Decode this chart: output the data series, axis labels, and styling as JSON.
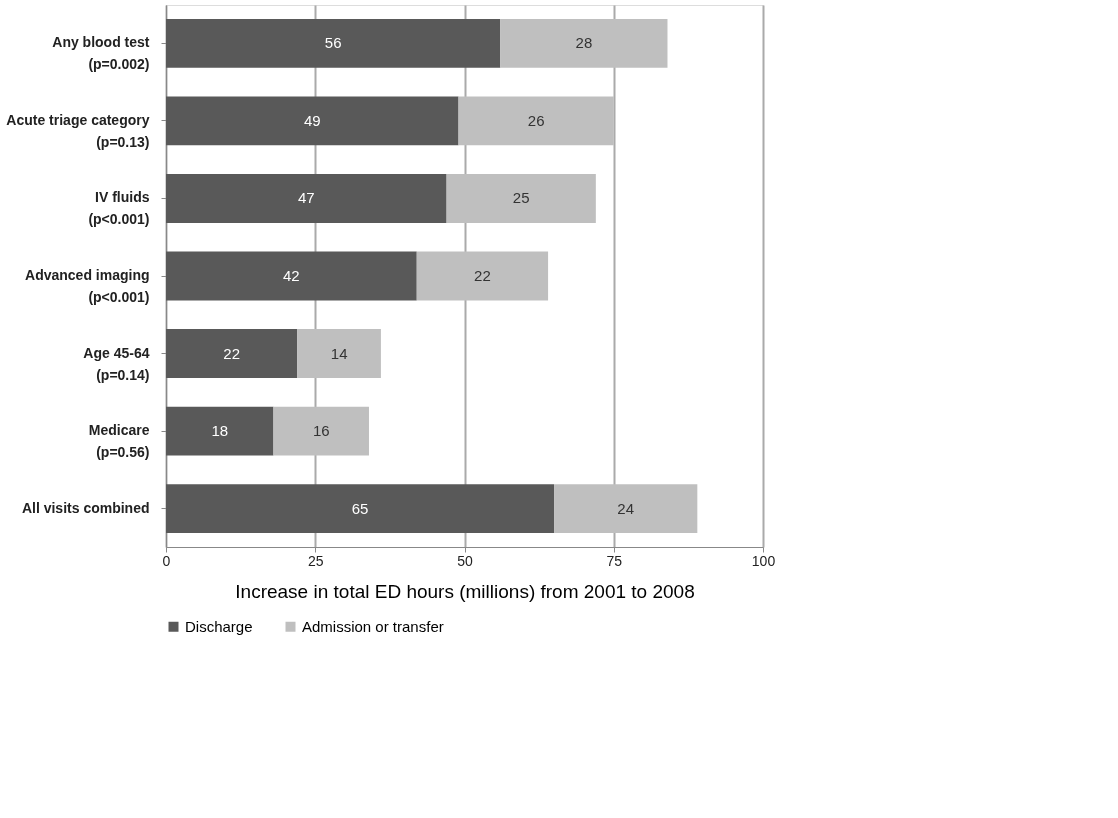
{
  "chart_data": {
    "type": "bar",
    "orientation": "horizontal",
    "stacked": true,
    "xlabel": "Increase in total ED hours (millions) from 2001 to 2008",
    "categories": [
      "Any blood test\n(p=0.002)",
      "Acute triage category\n(p=0.13)",
      "IV fluids\n(p<0.001)",
      "Advanced imaging\n(p<0.001)",
      "Age 45-64\n(p=0.14)",
      "Medicare\n(p=0.56)",
      "All visits  combined"
    ],
    "series": [
      {
        "name": "Discharge",
        "color": "#595959",
        "values": [
          56,
          49,
          47,
          42,
          22,
          18,
          65
        ]
      },
      {
        "name": "Admission or transfer",
        "color": "#bfbfbf",
        "values": [
          28,
          26,
          25,
          22,
          14,
          16,
          24
        ]
      }
    ],
    "xlim": [
      0,
      100
    ],
    "xticks": [
      0,
      25,
      50,
      75,
      100
    ],
    "grid": "x",
    "legend": "bottom",
    "data_labels": true
  }
}
